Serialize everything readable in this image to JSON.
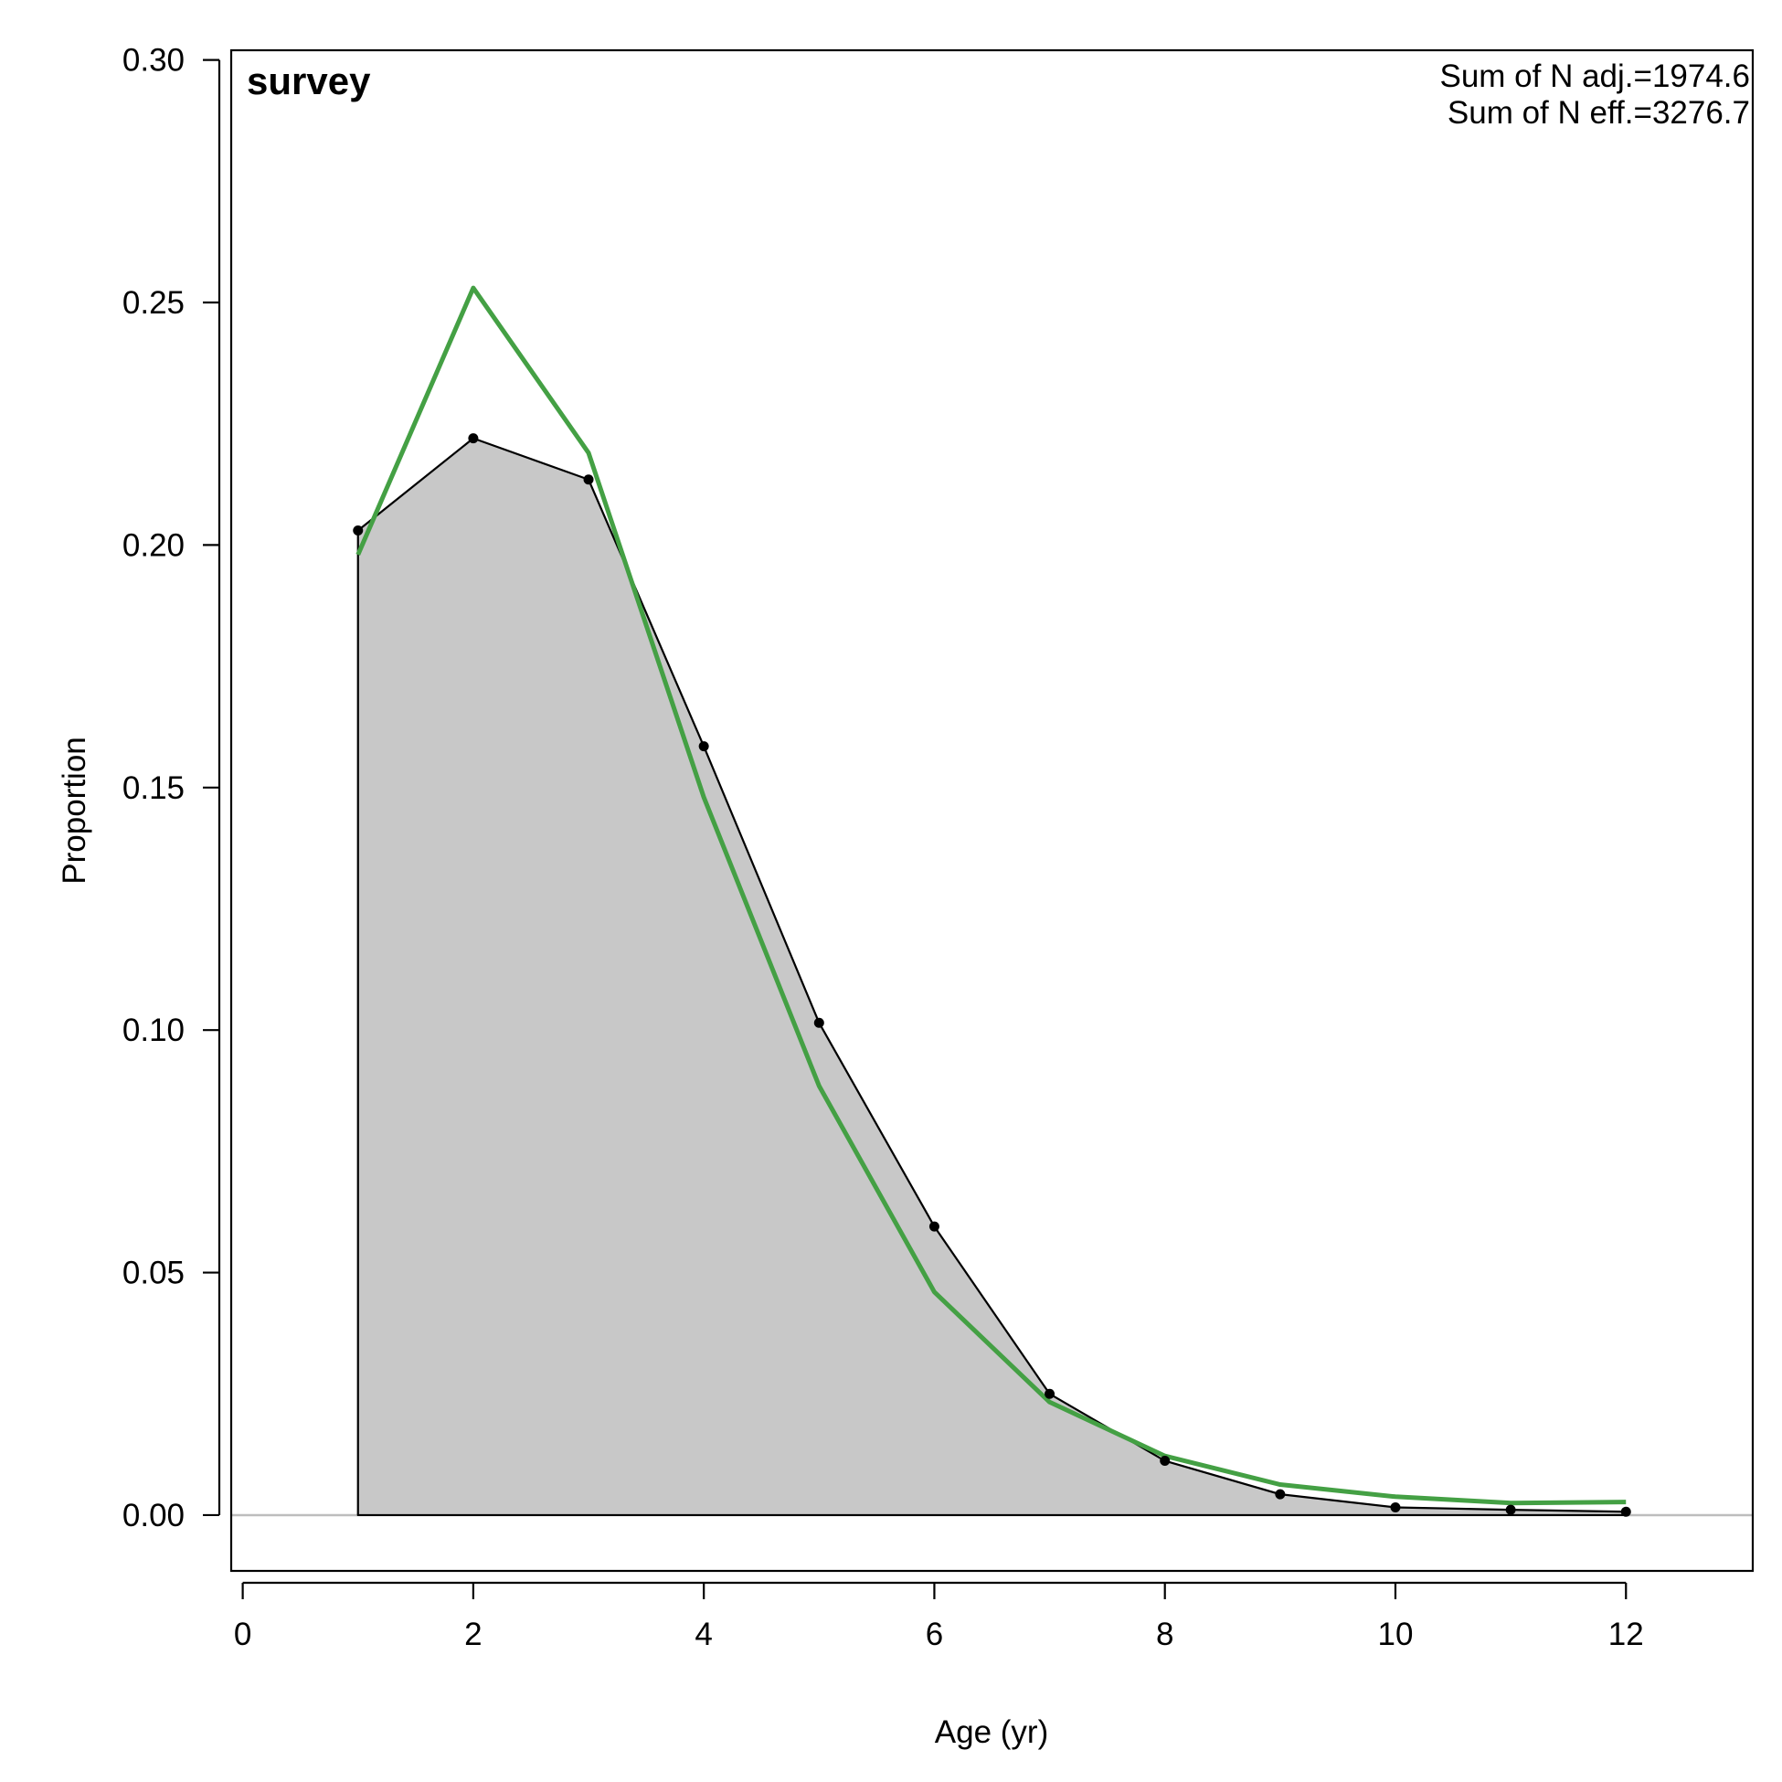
{
  "chart_data": {
    "type": "area",
    "title": "survey",
    "xlabel": "Age (yr)",
    "ylabel": "Proportion",
    "xlim": [
      -0.1,
      13.1
    ],
    "ylim": [
      -0.0115,
      0.302
    ],
    "x_ticks": [
      0,
      2,
      4,
      6,
      8,
      10,
      12
    ],
    "x_tick_labels": [
      "0",
      "2",
      "4",
      "6",
      "8",
      "10",
      "12"
    ],
    "y_ticks": [
      0,
      0.05,
      0.1,
      0.15,
      0.2,
      0.25,
      0.3
    ],
    "y_tick_labels": [
      "0.00",
      "0.05",
      "0.10",
      "0.15",
      "0.20",
      "0.25",
      "0.30"
    ],
    "grid": false,
    "reference_line_y": 0,
    "annotations": [
      "Sum of N adj.=1974.6",
      "Sum of N eff.=3276.7"
    ],
    "annotation_position": "top-right",
    "series": [
      {
        "role": "observed",
        "style": "filled area with points",
        "fill_color": "#c8c8c8",
        "line_color": "#000000",
        "x": [
          1,
          2,
          3,
          4,
          5,
          6,
          7,
          8,
          9,
          10,
          11,
          12
        ],
        "y": [
          0.203,
          0.222,
          0.2135,
          0.1585,
          0.1015,
          0.0595,
          0.025,
          0.0112,
          0.0043,
          0.0016,
          0.0011,
          0.0007
        ]
      },
      {
        "role": "expected",
        "style": "line",
        "line_color": "#44a044",
        "x": [
          1,
          2,
          3,
          4,
          5,
          6,
          7,
          8,
          9,
          10,
          11,
          12
        ],
        "y": [
          0.198,
          0.253,
          0.219,
          0.148,
          0.0885,
          0.046,
          0.0233,
          0.0122,
          0.0063,
          0.0038,
          0.0025,
          0.0027
        ]
      }
    ]
  }
}
